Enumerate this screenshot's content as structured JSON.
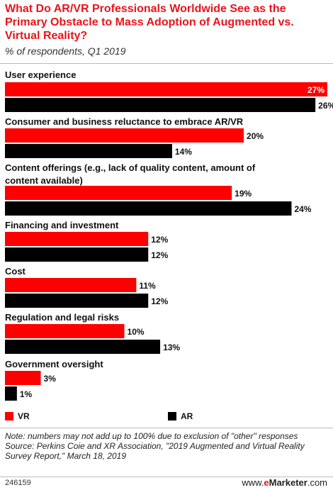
{
  "header": {
    "title": "What Do AR/VR Professionals Worldwide See as the Primary Obstacle to Mass Adoption of Augmented vs. Virtual Reality?",
    "subtitle": "% of respondents, Q1 2019"
  },
  "chart_data": {
    "type": "bar",
    "orientation": "horizontal",
    "categories": [
      "User experience",
      "Consumer and business reluctance to embrace AR/VR",
      "Content offerings (e.g., lack of quality content, amount of content available)",
      "Financing and investment",
      "Cost",
      "Regulation and legal risks",
      "Government oversight"
    ],
    "series": [
      {
        "name": "VR",
        "color": "#ff0000",
        "values": [
          27,
          20,
          19,
          12,
          11,
          10,
          3
        ]
      },
      {
        "name": "AR",
        "color": "#000000",
        "values": [
          26,
          14,
          24,
          12,
          12,
          13,
          1
        ]
      }
    ],
    "value_suffix": "%",
    "xlim": [
      0,
      27
    ],
    "grid": false,
    "legend_placement": "bottom"
  },
  "legend": {
    "items": [
      {
        "label": "VR",
        "color": "#ff0000"
      },
      {
        "label": "AR",
        "color": "#000000"
      }
    ]
  },
  "note": {
    "line1": "Note: numbers may not add up to 100% due to exclusion of \"other\" responses",
    "line2": "Source: Perkins Coie and XR Association, \"2019 Augmented and Virtual Reality Survey Report,\" March 18, 2019"
  },
  "footer": {
    "chart_id": "246159",
    "brand_prefix": "www.",
    "brand_e": "e",
    "brand_name": "Marketer",
    "brand_suffix": ".com"
  }
}
